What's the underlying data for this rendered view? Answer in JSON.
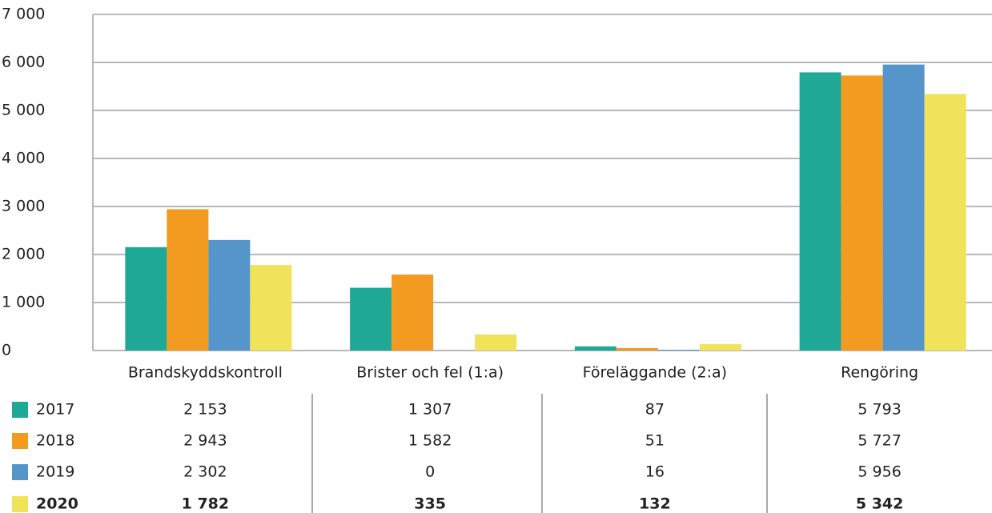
{
  "chart_data": {
    "type": "bar",
    "categories": [
      "Brandskyddskontroll",
      "Brister och fel (1:a)",
      "Föreläggande (2:a)",
      "Rengöring"
    ],
    "series": [
      {
        "name": "2017",
        "color": "#1fa896",
        "values": [
          2153,
          1307,
          87,
          5793
        ],
        "value_labels": [
          "2 153",
          "1 307",
          "87",
          "5 793"
        ]
      },
      {
        "name": "2018",
        "color": "#f39a21",
        "values": [
          2943,
          1582,
          51,
          5727
        ],
        "value_labels": [
          "2 943",
          "1 582",
          "51",
          "5 727"
        ]
      },
      {
        "name": "2019",
        "color": "#5595c9",
        "values": [
          2302,
          0,
          16,
          5956
        ],
        "value_labels": [
          "2 302",
          "0",
          "16",
          "5 956"
        ]
      },
      {
        "name": "2020",
        "color": "#f0e35a",
        "values": [
          1782,
          335,
          132,
          5342
        ],
        "value_labels": [
          "1 782",
          "335",
          "132",
          "5 342"
        ]
      }
    ],
    "ylim": [
      0,
      7000
    ],
    "yticks": [
      0,
      {
        "value": 1000,
        "label": "1 000"
      },
      {
        "value": 2000,
        "label": "2 000"
      },
      {
        "value": 3000,
        "label": "3 000"
      },
      {
        "value": 4000,
        "label": "4 000"
      },
      {
        "value": 5000,
        "label": "5 000"
      },
      {
        "value": 6000,
        "label": "6 000"
      },
      {
        "value": 7000,
        "label": "7 000"
      }
    ],
    "grid": true
  }
}
